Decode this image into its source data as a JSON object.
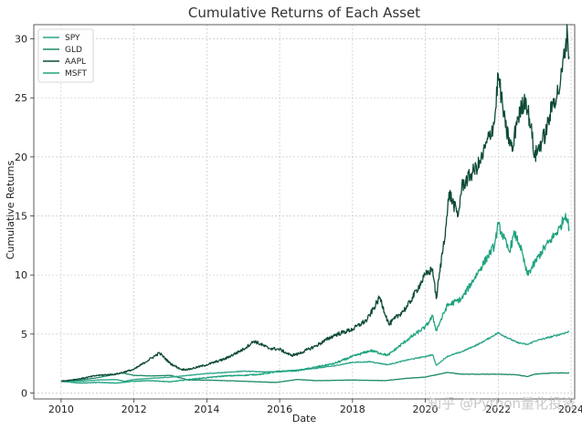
{
  "chart_data": {
    "type": "line",
    "title": "Cumulative Returns of Each Asset",
    "xlabel": "Date",
    "ylabel": "Cumulative Returns",
    "xlim": [
      2009.25,
      2024.1
    ],
    "ylim": [
      -0.5,
      31.2
    ],
    "x_ticks": [
      2010,
      2012,
      2014,
      2016,
      2018,
      2020,
      2022,
      2024
    ],
    "x_tick_labels": [
      "2010",
      "2012",
      "2014",
      "2016",
      "2018",
      "2020",
      "2022",
      "2024"
    ],
    "y_ticks": [
      0,
      5,
      10,
      15,
      20,
      25,
      30
    ],
    "y_tick_labels": [
      "0",
      "5",
      "10",
      "15",
      "20",
      "25",
      "30"
    ],
    "grid": true,
    "legend_position": "top-left",
    "series": [
      {
        "name": "SPY",
        "color": "#2ca589",
        "x": [
          2010.0,
          2010.5,
          2011.0,
          2011.5,
          2011.75,
          2012.0,
          2012.5,
          2013.0,
          2013.5,
          2014.0,
          2014.5,
          2015.0,
          2015.5,
          2016.0,
          2016.5,
          2017.0,
          2017.5,
          2018.0,
          2018.5,
          2018.97,
          2019.5,
          2020.0,
          2020.2,
          2020.3,
          2020.6,
          2021.0,
          2021.5,
          2022.0,
          2022.5,
          2022.8,
          2023.0,
          2023.5,
          2023.95
        ],
        "y": [
          1.0,
          1.0,
          1.1,
          1.15,
          1.0,
          1.15,
          1.25,
          1.35,
          1.5,
          1.65,
          1.75,
          1.85,
          1.8,
          1.8,
          1.95,
          2.1,
          2.3,
          2.6,
          2.65,
          2.4,
          2.8,
          3.1,
          3.25,
          2.35,
          3.1,
          3.5,
          4.2,
          5.1,
          4.3,
          4.1,
          4.4,
          4.8,
          5.2
        ]
      },
      {
        "name": "GLD",
        "color": "#1f8a68",
        "x": [
          2010.0,
          2010.5,
          2011.0,
          2011.67,
          2012.0,
          2012.5,
          2013.0,
          2013.5,
          2014.0,
          2015.0,
          2015.9,
          2016.5,
          2017.0,
          2018.0,
          2018.9,
          2019.5,
          2020.0,
          2020.6,
          2021.0,
          2021.5,
          2022.0,
          2022.5,
          2022.8,
          2023.0,
          2023.5,
          2023.95
        ],
        "y": [
          1.0,
          1.1,
          1.3,
          1.7,
          1.5,
          1.45,
          1.5,
          1.1,
          1.1,
          1.0,
          0.9,
          1.15,
          1.05,
          1.1,
          1.05,
          1.25,
          1.35,
          1.75,
          1.6,
          1.6,
          1.6,
          1.55,
          1.4,
          1.6,
          1.7,
          1.7
        ]
      },
      {
        "name": "AAPL",
        "color": "#0d4a35",
        "x": [
          2010.0,
          2010.5,
          2011.0,
          2011.5,
          2012.0,
          2012.7,
          2013.0,
          2013.3,
          2013.5,
          2014.0,
          2014.5,
          2015.0,
          2015.3,
          2015.7,
          2016.0,
          2016.3,
          2016.5,
          2017.0,
          2017.5,
          2018.0,
          2018.4,
          2018.75,
          2019.0,
          2019.5,
          2020.0,
          2020.2,
          2020.3,
          2020.6,
          2020.65,
          2020.9,
          2021.0,
          2021.5,
          2021.9,
          2022.0,
          2022.2,
          2022.4,
          2022.5,
          2022.75,
          2022.9,
          2023.0,
          2023.3,
          2023.5,
          2023.7,
          2023.85,
          2023.9,
          2023.95
        ],
        "y": [
          1.0,
          1.2,
          1.5,
          1.6,
          2.0,
          3.4,
          2.5,
          2.0,
          2.0,
          2.4,
          2.9,
          3.7,
          4.4,
          3.8,
          3.7,
          3.2,
          3.3,
          4.0,
          4.9,
          5.4,
          6.2,
          8.1,
          5.8,
          7.3,
          10.0,
          10.5,
          8.0,
          15.0,
          17.0,
          15.0,
          17.5,
          19.5,
          23.0,
          27.0,
          22.5,
          20.5,
          23.0,
          25.0,
          22.5,
          20.0,
          22.0,
          24.5,
          26.0,
          29.5,
          30.5,
          28.5
        ]
      },
      {
        "name": "MSFT",
        "color": "#1fa37f",
        "x": [
          2010.0,
          2010.5,
          2011.0,
          2011.5,
          2012.0,
          2012.5,
          2013.0,
          2013.5,
          2014.0,
          2014.5,
          2015.0,
          2015.5,
          2016.0,
          2016.5,
          2017.0,
          2017.5,
          2018.0,
          2018.5,
          2018.97,
          2019.5,
          2020.0,
          2020.2,
          2020.3,
          2020.6,
          2021.0,
          2021.5,
          2021.9,
          2022.0,
          2022.3,
          2022.45,
          2022.6,
          2022.8,
          2023.0,
          2023.2,
          2023.45,
          2023.7,
          2023.85,
          2023.95
        ],
        "y": [
          1.0,
          0.85,
          0.9,
          0.85,
          1.0,
          1.05,
          0.95,
          1.15,
          1.3,
          1.45,
          1.5,
          1.6,
          1.85,
          1.9,
          2.2,
          2.5,
          3.1,
          3.6,
          3.2,
          4.5,
          5.6,
          6.5,
          5.3,
          7.4,
          8.0,
          10.5,
          12.5,
          14.3,
          12.0,
          13.5,
          12.5,
          10.0,
          11.0,
          12.0,
          13.0,
          14.0,
          15.2,
          14.0
        ]
      }
    ]
  },
  "watermark": "知乎 @Python量化投资"
}
